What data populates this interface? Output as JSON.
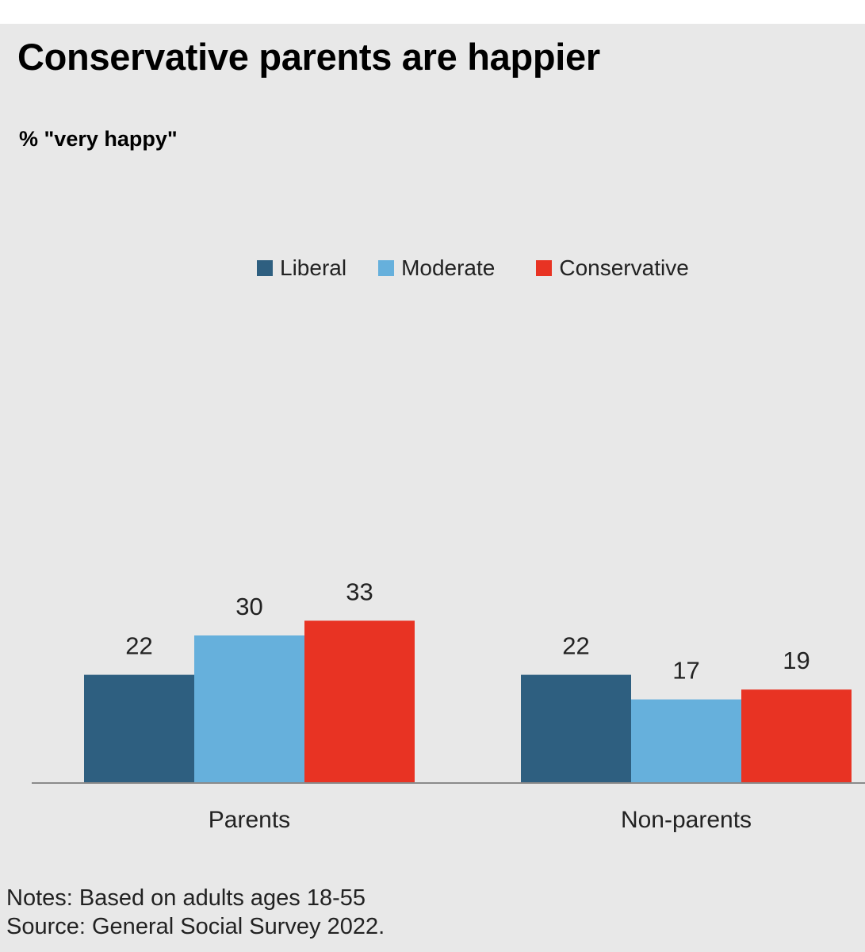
{
  "chart_data": {
    "type": "bar",
    "title": "Conservative parents are happier",
    "subtitle": "% \"very happy\"",
    "categories": [
      "Parents",
      "Non-parents"
    ],
    "series": [
      {
        "name": "Liberal",
        "color": "#2e5f80",
        "values": [
          22,
          22
        ]
      },
      {
        "name": "Moderate",
        "color": "#66b0dc",
        "values": [
          30,
          17
        ]
      },
      {
        "name": "Conservative",
        "color": "#e83323",
        "values": [
          33,
          19
        ]
      }
    ],
    "ylim": [
      0,
      45
    ],
    "grid": false,
    "legend": "top-center",
    "notes": "Notes: Based on adults ages 18-55",
    "source": "Source: General Social Survey 2022."
  }
}
